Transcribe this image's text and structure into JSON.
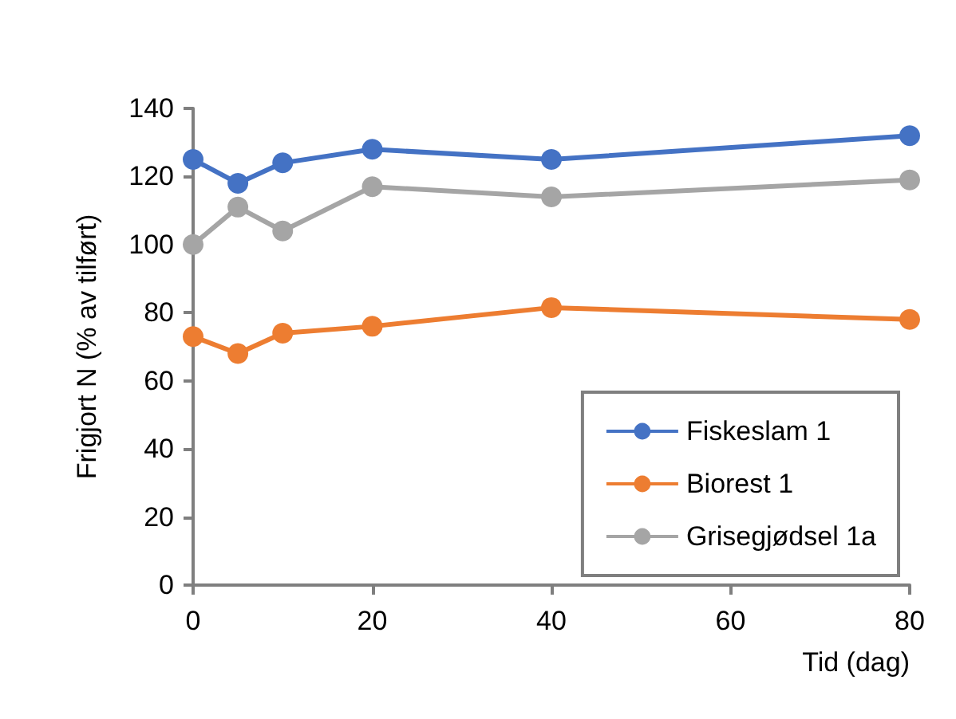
{
  "chart_data": {
    "type": "line",
    "xlabel": "Tid (dag)",
    "ylabel": "Frigjort N (% av tilført)",
    "x": [
      0,
      5,
      10,
      20,
      40,
      80
    ],
    "series": [
      {
        "name": "Fiskeslam 1",
        "color": "#4472c4",
        "values": [
          125,
          118,
          124,
          128,
          125,
          132
        ]
      },
      {
        "name": "Biorest 1",
        "color": "#ed7d31",
        "values": [
          73,
          68,
          74,
          76,
          81.5,
          78
        ]
      },
      {
        "name": "Grisegjødsel 1a",
        "color": "#a5a5a5",
        "values": [
          100,
          111,
          104,
          117,
          114,
          119
        ]
      }
    ],
    "xlim": [
      0,
      80
    ],
    "xticks": [
      0,
      20,
      40,
      60,
      80
    ],
    "ylim": [
      0,
      140
    ],
    "yticks": [
      0,
      20,
      40,
      60,
      80,
      100,
      120,
      140
    ],
    "grid": false,
    "legend": "bottom right",
    "marker": "circle",
    "line_style": "solid"
  }
}
